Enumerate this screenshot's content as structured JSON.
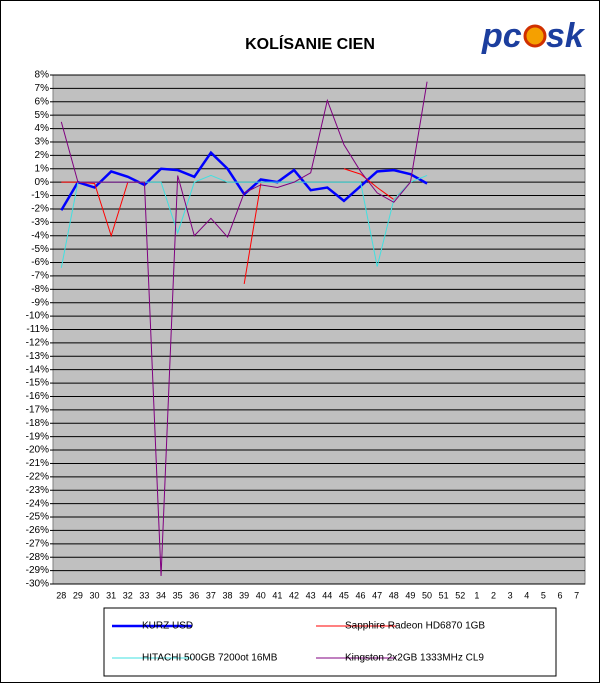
{
  "chart_data": {
    "type": "line",
    "title": "KOLÍSANIE CIEN",
    "logo": [
      "pc",
      "sk"
    ],
    "categories": [
      "28",
      "29",
      "30",
      "31",
      "32",
      "33",
      "34",
      "35",
      "36",
      "37",
      "38",
      "39",
      "40",
      "41",
      "42",
      "43",
      "44",
      "45",
      "46",
      "47",
      "48",
      "49",
      "50",
      "51",
      "52",
      "1",
      "2",
      "3",
      "4",
      "5",
      "6",
      "7"
    ],
    "series": [
      {
        "name": "KURZ USD",
        "color": "#0000ff",
        "width": 2.5,
        "values": [
          -2.1,
          0,
          -0.4,
          0.8,
          0.4,
          -0.2,
          1.0,
          0.9,
          0.4,
          2.2,
          1.0,
          -0.9,
          0.2,
          0,
          0.9,
          -0.6,
          -0.4,
          -1.4,
          -0.3,
          0.8,
          0.9,
          0.6,
          -0.1,
          null,
          null,
          null,
          null,
          null,
          null,
          null,
          null,
          null
        ]
      },
      {
        "name": "Sapphire Radeon HD6870 1GB",
        "color": "#ff0000",
        "width": 1,
        "values": [
          0,
          0,
          -0.1,
          -4.0,
          0,
          0,
          null,
          null,
          null,
          null,
          null,
          -7.6,
          -0.1,
          null,
          null,
          null,
          null,
          1.0,
          0.6,
          -0.4,
          -1.3,
          0,
          null,
          null,
          null,
          null,
          null,
          null,
          null,
          null,
          null,
          null
        ]
      },
      {
        "name": "HITACHI 500GB 7200ot 16MB",
        "color": "#40e0e0",
        "width": 1,
        "values": [
          -6.4,
          0,
          0,
          0,
          0,
          0,
          0,
          -3.8,
          0,
          0.5,
          0,
          0,
          0,
          0,
          0,
          0,
          0,
          0,
          0,
          -6.3,
          -1.3,
          0,
          0.5,
          null,
          null,
          null,
          null,
          null,
          null,
          null,
          null,
          null
        ]
      },
      {
        "name": "Kingston 2x2GB 1333MHz CL9",
        "color": "#800080",
        "width": 1,
        "values": [
          4.5,
          0,
          0,
          0,
          0,
          0,
          -29.4,
          0.5,
          -4.0,
          -2.7,
          -4.1,
          -0.8,
          -0.2,
          -0.4,
          0,
          0.7,
          6.1,
          2.8,
          0.8,
          -0.8,
          -1.5,
          0,
          7.5,
          null,
          null,
          null,
          null,
          null,
          null,
          null,
          null,
          null
        ]
      }
    ],
    "ylim": [
      -30,
      8
    ],
    "yticks": [
      {
        "value": 8,
        "label": "8%"
      },
      {
        "value": 7,
        "label": "7%"
      },
      {
        "value": 6,
        "label": "6%"
      },
      {
        "value": 5,
        "label": "5%"
      },
      {
        "value": 4,
        "label": "4%"
      },
      {
        "value": 3,
        "label": "3%"
      },
      {
        "value": 2,
        "label": "2%"
      },
      {
        "value": 1,
        "label": "1%"
      },
      {
        "value": 0,
        "label": "0%"
      },
      {
        "value": -1,
        "label": "-1%"
      },
      {
        "value": -2,
        "label": "-2%"
      },
      {
        "value": -3,
        "label": "-3%"
      },
      {
        "value": -4,
        "label": "-4%"
      },
      {
        "value": -5,
        "label": "-5%"
      },
      {
        "value": -6,
        "label": "-6%"
      },
      {
        "value": -7,
        "label": "-7%"
      },
      {
        "value": -8,
        "label": "-8%"
      },
      {
        "value": -9,
        "label": "-9%"
      },
      {
        "value": -10,
        "label": "-10%"
      },
      {
        "value": -11,
        "label": "-11%"
      },
      {
        "value": -12,
        "label": "-12%"
      },
      {
        "value": -13,
        "label": "-13%"
      },
      {
        "value": -14,
        "label": "-14%"
      },
      {
        "value": -15,
        "label": "-15%"
      },
      {
        "value": -16,
        "label": "-16%"
      },
      {
        "value": -17,
        "label": "-17%"
      },
      {
        "value": -18,
        "label": "-18%"
      },
      {
        "value": -19,
        "label": "-19%"
      },
      {
        "value": -20,
        "label": "-20%"
      },
      {
        "value": -21,
        "label": "-21%"
      },
      {
        "value": -22,
        "label": "-22%"
      },
      {
        "value": -23,
        "label": "-23%"
      },
      {
        "value": -24,
        "label": "-24%"
      },
      {
        "value": -25,
        "label": "-25%"
      },
      {
        "value": -26,
        "label": "-26%"
      },
      {
        "value": -27,
        "label": "-27%"
      },
      {
        "value": -28,
        "label": "-28%"
      },
      {
        "value": -29,
        "label": "-29%"
      },
      {
        "value": -30,
        "label": "-30%"
      }
    ],
    "grid": true,
    "legend": "bottom"
  }
}
